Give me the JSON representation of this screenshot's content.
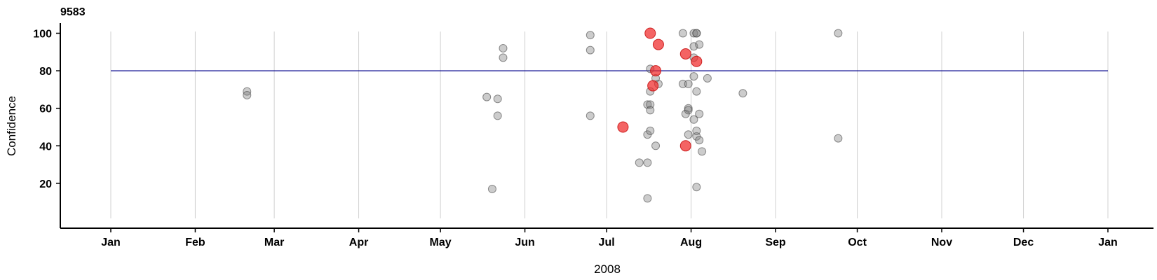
{
  "chart_data": {
    "type": "scatter",
    "title": "9583",
    "xlabel": "2008",
    "ylabel": "Confidence",
    "x_ticks": [
      "Jan",
      "Feb",
      "Mar",
      "Apr",
      "May",
      "Jun",
      "Jul",
      "Aug",
      "Sep",
      "Oct",
      "Nov",
      "Dec",
      "Jan"
    ],
    "y_ticks": [
      20,
      40,
      60,
      80,
      100
    ],
    "ylim": [
      0,
      105
    ],
    "grid": "vertical",
    "reference_line": {
      "y": 80,
      "color": "#00008b"
    },
    "colors": {
      "grey_points": "#808080",
      "red_points": "#f03030"
    },
    "series": [
      {
        "points": [
          [
            "2008-02-20",
            69
          ],
          [
            "2008-02-20",
            67
          ],
          [
            "2008-05-18",
            66
          ],
          [
            "2008-05-20",
            17
          ],
          [
            "2008-05-22",
            65
          ],
          [
            "2008-05-22",
            56
          ],
          [
            "2008-05-24",
            92
          ],
          [
            "2008-05-24",
            87
          ],
          [
            "2008-06-25",
            99
          ],
          [
            "2008-06-25",
            91
          ],
          [
            "2008-06-25",
            56
          ],
          [
            "2008-07-13",
            31
          ],
          [
            "2008-07-16",
            31
          ],
          [
            "2008-07-16",
            12
          ],
          [
            "2008-07-16",
            62
          ],
          [
            "2008-07-16",
            46
          ],
          [
            "2008-07-17",
            48
          ],
          [
            "2008-07-17",
            69
          ],
          [
            "2008-07-17",
            62
          ],
          [
            "2008-07-17",
            59
          ],
          [
            "2008-07-17",
            81
          ],
          [
            "2008-07-19",
            76
          ],
          [
            "2008-07-19",
            40
          ],
          [
            "2008-07-20",
            73
          ],
          [
            "2008-07-29",
            100
          ],
          [
            "2008-07-29",
            73
          ],
          [
            "2008-07-30",
            57
          ],
          [
            "2008-07-31",
            46
          ],
          [
            "2008-07-31",
            60
          ],
          [
            "2008-07-31",
            59
          ],
          [
            "2008-07-31",
            73
          ],
          [
            "2008-08-02",
            100
          ],
          [
            "2008-08-02",
            77
          ],
          [
            "2008-08-02",
            54
          ],
          [
            "2008-08-02",
            87
          ],
          [
            "2008-08-02",
            93
          ],
          [
            "2008-08-03",
            100
          ],
          [
            "2008-08-03",
            100
          ],
          [
            "2008-08-03",
            45
          ],
          [
            "2008-08-03",
            48
          ],
          [
            "2008-08-03",
            69
          ],
          [
            "2008-08-03",
            18
          ],
          [
            "2008-08-04",
            94
          ],
          [
            "2008-08-04",
            57
          ],
          [
            "2008-08-04",
            43
          ],
          [
            "2008-08-05",
            37
          ],
          [
            "2008-08-07",
            76
          ],
          [
            "2008-08-20",
            68
          ],
          [
            "2008-09-24",
            100
          ],
          [
            "2008-09-24",
            44
          ]
        ]
      },
      {
        "points": [
          [
            "2008-07-07",
            50
          ],
          [
            "2008-07-17",
            100
          ],
          [
            "2008-07-18",
            72
          ],
          [
            "2008-07-19",
            80
          ],
          [
            "2008-07-20",
            94
          ],
          [
            "2008-07-30",
            89
          ],
          [
            "2008-07-30",
            40
          ],
          [
            "2008-08-03",
            85
          ]
        ]
      }
    ]
  }
}
